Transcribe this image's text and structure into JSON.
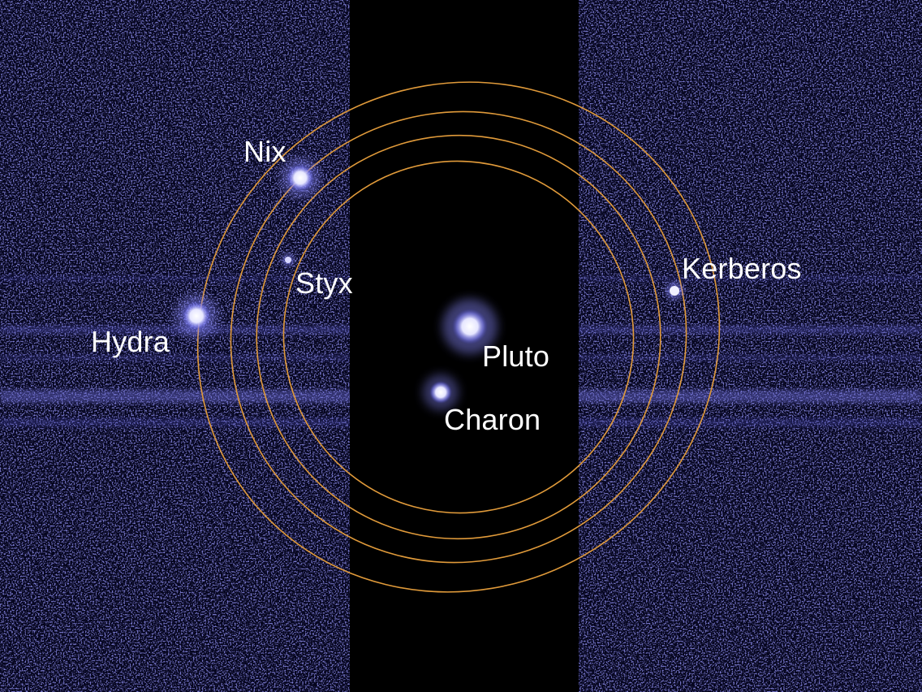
{
  "image": {
    "colors": {
      "background": "#05051e",
      "noise": "#3a3ab6",
      "center_panel": "#000000",
      "orbit": "#e09a3a",
      "body": "#f4f4ff",
      "body_glow": "#8a8aff",
      "label": "#ffffff"
    }
  },
  "labels": {
    "nix": "Nix",
    "styx": "Styx",
    "hydra": "Hydra",
    "pluto": "Pluto",
    "charon": "Charon",
    "kerberos": "Kerberos"
  }
}
